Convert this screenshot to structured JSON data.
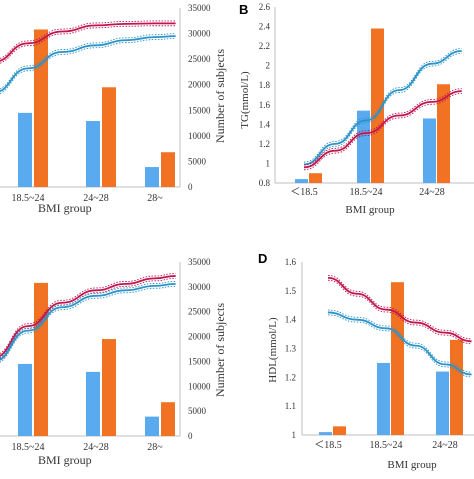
{
  "colors": {
    "bar_blue": "#5aaaf0",
    "bar_orange": "#f07222",
    "line_red": "#c0164d",
    "line_blue": "#2a93c8",
    "axis": "#bfbfbf"
  },
  "chart_data": [
    {
      "panel": "",
      "type": "bar",
      "categories": [
        "18.5~24",
        "24~28",
        "28~"
      ],
      "series": [
        {
          "values": [
            14500,
            12900,
            3900
          ]
        },
        {
          "values": [
            30800,
            19500,
            6800
          ]
        }
      ],
      "xlabel": "BMI group",
      "ylabel": "Number of subjects",
      "y_axis_side": "right",
      "ylim": [
        0,
        35000
      ],
      "yticks": [
        "0",
        "5000",
        "10000",
        "15000",
        "20000",
        "25000",
        "30000",
        "35000"
      ],
      "trend_lines": [
        {
          "color": "red",
          "x": [
            -0.5,
            0.0,
            0.5,
            1.0,
            1.5,
            2.0,
            2.35
          ],
          "y": [
            24500,
            28100,
            30400,
            31600,
            31900,
            32000,
            32000
          ]
        },
        {
          "color": "blue",
          "x": [
            -0.5,
            0.0,
            0.5,
            1.0,
            1.5,
            2.0,
            2.35
          ],
          "y": [
            18500,
            23200,
            26400,
            27700,
            28700,
            29300,
            29500
          ]
        }
      ]
    },
    {
      "panel": "B",
      "type": "bar",
      "categories": [
        "＜18.5",
        "18.5~24",
        "24~28"
      ],
      "series": [
        {
          "values": [
            0.84,
            1.54,
            1.46
          ]
        },
        {
          "values": [
            0.9,
            2.38,
            1.81
          ]
        }
      ],
      "xlabel": "BMI group",
      "ylabel": "TG(mmol/L)",
      "y_axis_side": "left",
      "ylim": [
        0.8,
        2.6
      ],
      "yticks": [
        "0.8",
        "1",
        "1.2",
        "1.4",
        "1.6",
        "1.8",
        "2",
        "2.2",
        "2.4",
        "2.6"
      ],
      "trend_lines": [
        {
          "color": "blue",
          "x": [
            0.0,
            0.5,
            1.0,
            1.5,
            2.0,
            2.45
          ],
          "y": [
            0.99,
            1.2,
            1.44,
            1.75,
            2.02,
            2.15
          ]
        },
        {
          "color": "red",
          "x": [
            0.0,
            0.5,
            1.0,
            1.5,
            2.0,
            2.45
          ],
          "y": [
            0.96,
            1.13,
            1.31,
            1.49,
            1.63,
            1.74
          ]
        }
      ]
    },
    {
      "panel": "",
      "type": "bar",
      "categories": [
        "18.5~24",
        "24~28",
        "28~"
      ],
      "series": [
        {
          "values": [
            14500,
            12900,
            3900
          ]
        },
        {
          "values": [
            30800,
            19500,
            6800
          ]
        }
      ],
      "xlabel": "BMI group",
      "ylabel": "Number of subjects",
      "y_axis_side": "right",
      "ylim": [
        0,
        35000
      ],
      "yticks": [
        "0",
        "5000",
        "10000",
        "15000",
        "20000",
        "25000",
        "30000",
        "35000"
      ],
      "trend_lines": [
        {
          "color": "red",
          "x": [
            -0.5,
            0.0,
            0.5,
            1.0,
            1.5,
            2.0,
            2.35
          ],
          "y": [
            15800,
            22100,
            26800,
            29300,
            30600,
            31700,
            32200
          ]
        },
        {
          "color": "blue",
          "x": [
            -0.5,
            0.0,
            0.5,
            1.0,
            1.5,
            2.0,
            2.35
          ],
          "y": [
            15000,
            21200,
            25900,
            28200,
            29300,
            30200,
            30600
          ]
        }
      ]
    },
    {
      "panel": "D",
      "type": "bar",
      "categories": [
        "＜18.5",
        "18.5~24",
        "24~28"
      ],
      "series": [
        {
          "values": [
            1.01,
            1.25,
            1.22
          ]
        },
        {
          "values": [
            1.03,
            1.53,
            1.33
          ]
        }
      ],
      "xlabel": "BMI group",
      "ylabel": "HDL(mmol/L)",
      "y_axis_side": "left",
      "ylim": [
        1.0,
        1.6
      ],
      "yticks": [
        "1",
        "1.1",
        "1.2",
        "1.3",
        "1.4",
        "1.5",
        "1.6"
      ],
      "trend_lines": [
        {
          "color": "red",
          "x": [
            0.0,
            0.5,
            1.0,
            1.5,
            2.0,
            2.45
          ],
          "y": [
            1.545,
            1.49,
            1.435,
            1.39,
            1.355,
            1.325
          ]
        },
        {
          "color": "blue",
          "x": [
            0.0,
            0.5,
            1.0,
            1.5,
            2.0,
            2.45
          ],
          "y": [
            1.425,
            1.4,
            1.37,
            1.31,
            1.245,
            1.21
          ]
        }
      ]
    }
  ]
}
